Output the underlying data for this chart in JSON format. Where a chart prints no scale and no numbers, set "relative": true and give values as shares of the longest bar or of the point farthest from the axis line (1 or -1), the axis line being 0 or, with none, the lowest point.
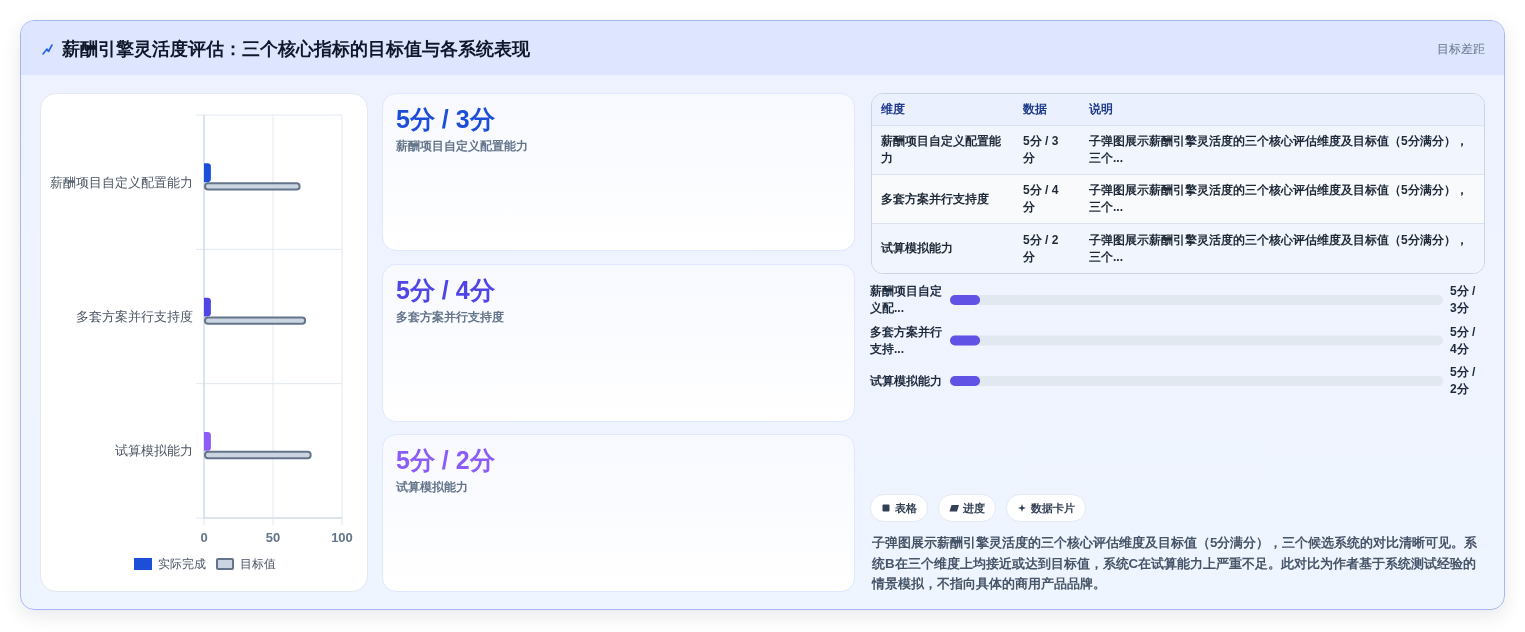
{
  "chart_data": [
    {
      "type": "other",
      "title": "薪酬引擎灵活度评估：三个核心指标的目标值与各系统表现",
      "subtitle": "目标差距"
    },
    {
      "type": "bar",
      "orientation": "horizontal",
      "categories": [
        "薪酬项目自定义配置能力",
        "多套方案并行支持度",
        "试算模拟能力"
      ],
      "series": [
        {
          "name": "实际完成",
          "color": "#1d4ed8",
          "colors": [
            "#1d4ed8",
            "#4f46e5",
            "#8b5cf6"
          ],
          "values": [
            5,
            5,
            5
          ]
        },
        {
          "name": "目标值",
          "color": "#cbd5e1",
          "values": [
            70,
            74,
            78
          ]
        }
      ],
      "xlim": [
        0,
        100
      ],
      "xticks": [
        0,
        50,
        100
      ],
      "grid": true,
      "legend": "bottom"
    },
    {
      "type": "other",
      "annotations": [
        "5分 / 3分",
        "薪酬项目自定义配置能力",
        "5分 / 4分",
        "多套方案并行支持度",
        "5分 / 2分",
        "试算模拟能力"
      ],
      "colors": [
        "#1d4ed8",
        "#4f46e5",
        "#8b5cf6"
      ]
    },
    {
      "type": "other",
      "annotations": [
        "维度",
        "数据",
        "说明",
        "薪酬项目自定义配置能力",
        "5分 / 3分",
        "子弹图展示薪酬引擎灵活度的三个核心评估维度及目标值（5分满分），三个...",
        "多套方案并行支持度",
        "5分 / 4分",
        "子弹图展示薪酬引擎灵活度的三个核心评估维度及目标值（5分满分），三个...",
        "试算模拟能力",
        "5分 / 2分",
        "子弹图展示薪酬引擎灵活度的三个核心评估维度及目标值（5分满分），三个..."
      ]
    },
    {
      "type": "bar",
      "orientation": "horizontal",
      "relative": true,
      "categories": [
        "薪酬项目自定义配...",
        "多套方案并行支持...",
        "试算模拟能力"
      ],
      "values": [
        1,
        1,
        1
      ],
      "color": "#6152e6",
      "annotations": [
        "5分 / 3分",
        "5分 / 4分",
        "5分 / 2分"
      ]
    },
    {
      "type": "other",
      "annotations": [
        "表格",
        "进度",
        "数据卡片",
        "子弹图展示薪酬引擎灵活度的三个核心评估维度及目标值（5分满分），三个候选系统的对比清晰可见。系统B在三个维度上均接近或达到目标值，系统C在试算能力上严重不足。此对比为作者基于系统测试经验的情景模拟，不指向具体的商用产品品牌。"
      ]
    }
  ]
}
